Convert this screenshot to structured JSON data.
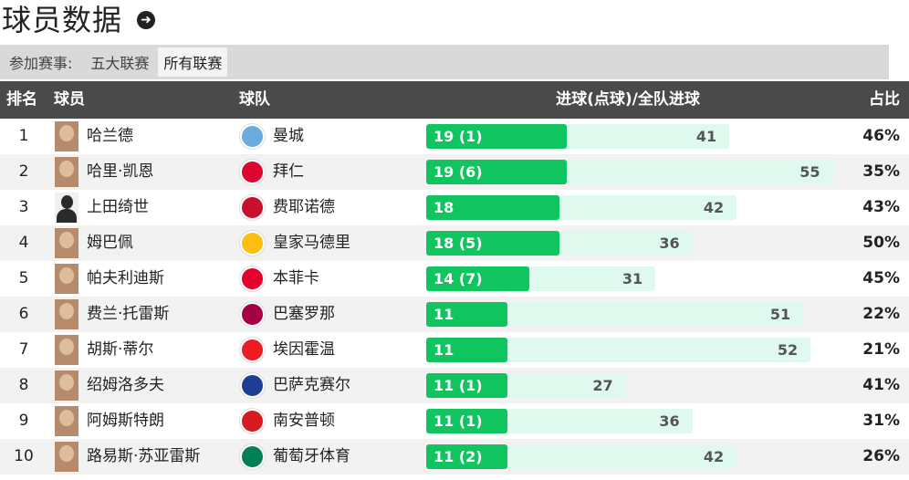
{
  "page": {
    "title": "球员数据"
  },
  "filter": {
    "label": "参加赛事:",
    "options": [
      "五大联赛",
      "所有联赛"
    ],
    "active_index": 1
  },
  "table": {
    "headers": {
      "rank": "排名",
      "player": "球员",
      "team": "球队",
      "goals": "进球(点球)/全队进球",
      "pct": "占比"
    },
    "rows": [
      {
        "rank": "1",
        "player": "哈兰德",
        "team": "曼城",
        "goals": 19,
        "goals_label": "19 (1)",
        "team_goals": 41,
        "team_goals_label": "41",
        "pct": "46%",
        "badge_color": "#6cabdd",
        "avatar": "face"
      },
      {
        "rank": "2",
        "player": "哈里·凯恩",
        "team": "拜仁",
        "goals": 19,
        "goals_label": "19 (6)",
        "team_goals": 55,
        "team_goals_label": "55",
        "pct": "35%",
        "badge_color": "#dc052d",
        "avatar": "face"
      },
      {
        "rank": "3",
        "player": "上田绮世",
        "team": "费耶诺德",
        "goals": 18,
        "goals_label": "18",
        "team_goals": 42,
        "team_goals_label": "42",
        "pct": "43%",
        "badge_color": "#c8102e",
        "avatar": "blank"
      },
      {
        "rank": "4",
        "player": "姆巴佩",
        "team": "皇家马德里",
        "goals": 18,
        "goals_label": "18 (5)",
        "team_goals": 36,
        "team_goals_label": "36",
        "pct": "50%",
        "badge_color": "#febe10",
        "avatar": "face"
      },
      {
        "rank": "5",
        "player": "帕夫利迪斯",
        "team": "本菲卡",
        "goals": 14,
        "goals_label": "14 (7)",
        "team_goals": 31,
        "team_goals_label": "31",
        "pct": "45%",
        "badge_color": "#e4002b",
        "avatar": "face"
      },
      {
        "rank": "6",
        "player": "费兰·托雷斯",
        "team": "巴塞罗那",
        "goals": 11,
        "goals_label": "11",
        "team_goals": 51,
        "team_goals_label": "51",
        "pct": "22%",
        "badge_color": "#a50044",
        "avatar": "face"
      },
      {
        "rank": "7",
        "player": "胡斯·蒂尔",
        "team": "埃因霍温",
        "goals": 11,
        "goals_label": "11",
        "team_goals": 52,
        "team_goals_label": "52",
        "pct": "21%",
        "badge_color": "#ed1c24",
        "avatar": "face"
      },
      {
        "rank": "8",
        "player": "绍姆洛多夫",
        "team": "巴萨克赛尔",
        "goals": 11,
        "goals_label": "11 (1)",
        "team_goals": 27,
        "team_goals_label": "27",
        "pct": "41%",
        "badge_color": "#1c3f94",
        "avatar": "face"
      },
      {
        "rank": "9",
        "player": "阿姆斯特朗",
        "team": "南安普顿",
        "goals": 11,
        "goals_label": "11 (1)",
        "team_goals": 36,
        "team_goals_label": "36",
        "pct": "31%",
        "badge_color": "#d71920",
        "avatar": "face"
      },
      {
        "rank": "10",
        "player": "路易斯·苏亚雷斯",
        "team": "葡萄牙体育",
        "goals": 11,
        "goals_label": "11 (2)",
        "team_goals": 42,
        "team_goals_label": "42",
        "pct": "26%",
        "badge_color": "#008057",
        "avatar": "face"
      }
    ]
  },
  "colors": {
    "bar_fill": "#10c45f",
    "bar_track": "#e0f9ee",
    "header_bg": "#4a4a4a",
    "filter_bg": "#d9d9d9"
  }
}
